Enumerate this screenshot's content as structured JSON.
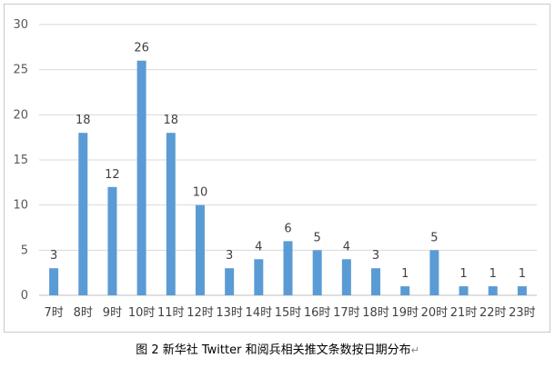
{
  "chart_data": {
    "type": "bar",
    "categories": [
      "7时",
      "8时",
      "9时",
      "10时",
      "11时",
      "12时",
      "13时",
      "14时",
      "15时",
      "16时",
      "17时",
      "18时",
      "19时",
      "20时",
      "21时",
      "22时",
      "23时"
    ],
    "values": [
      3,
      18,
      12,
      26,
      18,
      10,
      3,
      4,
      6,
      5,
      4,
      3,
      1,
      5,
      1,
      1,
      1
    ],
    "ylim": [
      0,
      30
    ],
    "yticks": [
      0,
      5,
      10,
      15,
      20,
      25,
      30
    ],
    "grid": true,
    "legend": "none",
    "bar_color": "#5b9bd5",
    "data_labels": true
  },
  "caption": {
    "text": "图 2  新华社 Twitter 和阅兵相关推文条数按日期分布",
    "trailing_mark": "↵"
  }
}
